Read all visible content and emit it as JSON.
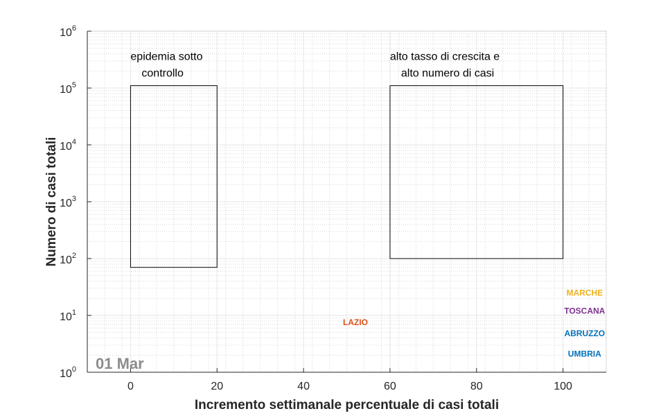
{
  "chart_data": {
    "type": "scatter",
    "xlabel": "Incremento settimanale percentuale di casi totali",
    "ylabel": "Numero di casi totali",
    "xlim": [
      -10,
      110
    ],
    "ylim": [
      1,
      1000000
    ],
    "yscale": "log",
    "grid": true,
    "minor_grid": true,
    "x_ticks": [
      "0",
      "20",
      "40",
      "60",
      "80",
      "100"
    ],
    "y_ticks": [
      {
        "base": "10",
        "exp": "0"
      },
      {
        "base": "10",
        "exp": "1"
      },
      {
        "base": "10",
        "exp": "2"
      },
      {
        "base": "10",
        "exp": "3"
      },
      {
        "base": "10",
        "exp": "4"
      },
      {
        "base": "10",
        "exp": "5"
      },
      {
        "base": "10",
        "exp": "6"
      }
    ],
    "date_label": "01 Mar",
    "regions": [
      {
        "lines": [
          "epidemia sotto",
          "controllo"
        ],
        "x": [
          0,
          20
        ],
        "y": [
          70,
          110000
        ]
      },
      {
        "lines": [
          "alto tasso di crescita e",
          "alto numero di casi"
        ],
        "x": [
          60,
          100
        ],
        "y": [
          100,
          110000
        ]
      }
    ],
    "points": [
      {
        "name": "LAZIO",
        "x": 52,
        "y": 7.5,
        "color": "#d95319"
      },
      {
        "name": "MARCHE",
        "x": 105,
        "y": 25,
        "color": "#edb120"
      },
      {
        "name": "TOSCANA",
        "x": 105,
        "y": 12,
        "color": "#7e2f8e"
      },
      {
        "name": "ABRUZZO",
        "x": 105,
        "y": 4.8,
        "color": "#0072bd"
      },
      {
        "name": "UMBRIA",
        "x": 105,
        "y": 2.1,
        "color": "#0072bd"
      }
    ]
  }
}
